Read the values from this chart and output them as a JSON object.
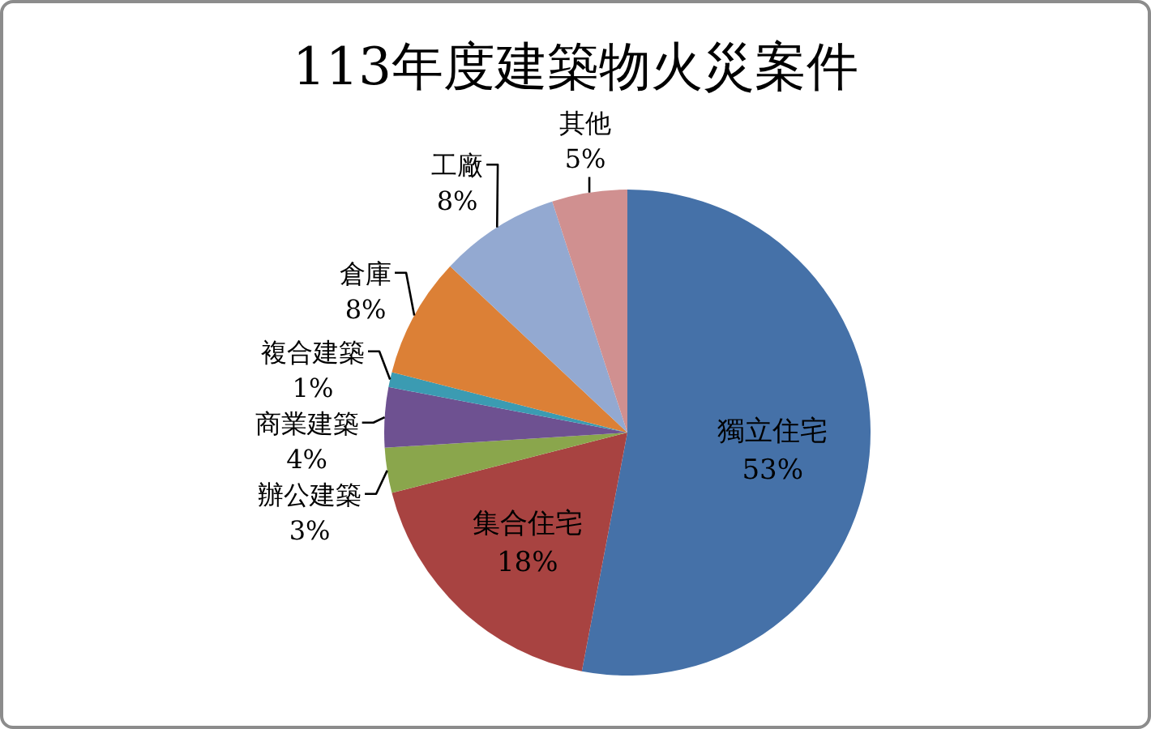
{
  "chart_data": {
    "type": "pie",
    "title": "113年度建築物火災案件",
    "categories": [
      "獨立住宅",
      "集合住宅",
      "辦公建築",
      "商業建築",
      "複合建築",
      "倉庫",
      "工廠",
      "其他"
    ],
    "values": [
      53,
      18,
      3,
      4,
      1,
      8,
      8,
      5
    ],
    "value_labels": [
      "53%",
      "18%",
      "3%",
      "4%",
      "1%",
      "8%",
      "8%",
      "5%"
    ],
    "colors": [
      "#4571a8",
      "#a84341",
      "#8aa64c",
      "#6e5191",
      "#3b9bb2",
      "#dc8036",
      "#93a9d1",
      "#d09090"
    ]
  }
}
